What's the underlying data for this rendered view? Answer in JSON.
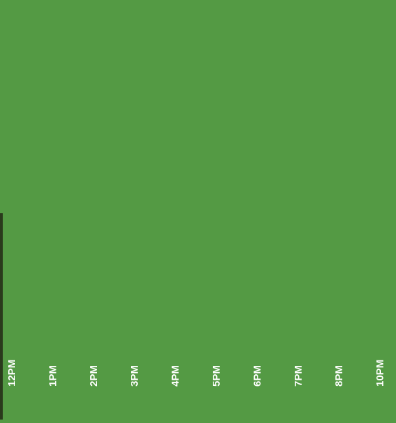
{
  "timeline": {
    "labels": [
      "12PM",
      "1PM",
      "2PM",
      "3PM",
      "4PM",
      "5PM",
      "6PM",
      "7PM",
      "8PM",
      "10PM"
    ]
  }
}
